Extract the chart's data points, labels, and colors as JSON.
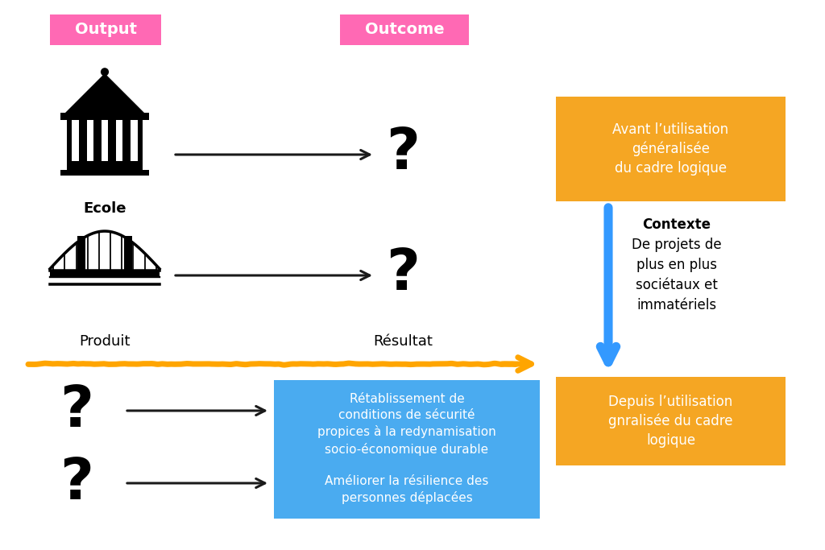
{
  "background_color": "#ffffff",
  "output_label": "Output",
  "output_label_bg": "#ff69b4",
  "outcome_label": "Outcome",
  "outcome_label_bg": "#ff69b4",
  "output_label_color": "#ffffff",
  "outcome_label_color": "#ffffff",
  "ecole_label": "Ecole",
  "produit_label": "Produit",
  "resultat_label": "Résultat",
  "arrow_color": "#1a1a1a",
  "orange_arrow_color": "#FFA500",
  "blue_arrow_color": "#3399FF",
  "orange_box1_text": "Avant l’utilisation\ngénéralisée\ndu cadre logique",
  "orange_box2_text": "Depuis l’utilisation\ngnralisée du cadre\nlogique",
  "orange_box_bg": "#F5A623",
  "orange_box_text_color": "#ffffff",
  "blue_box1_text": "Rétablissement de\nconditions de sécurité\npropices à la redynamisation\nsocio-économique durable",
  "blue_box2_text": "Améliorer la résilience des\npersonnes déplacées",
  "blue_box_bg": "#4AABF0",
  "blue_box_text_color": "#ffffff",
  "contexte_label": "Contexte",
  "contexte_text": "De projets de\nplus en plus\nsociétaux et\nimmatériels"
}
